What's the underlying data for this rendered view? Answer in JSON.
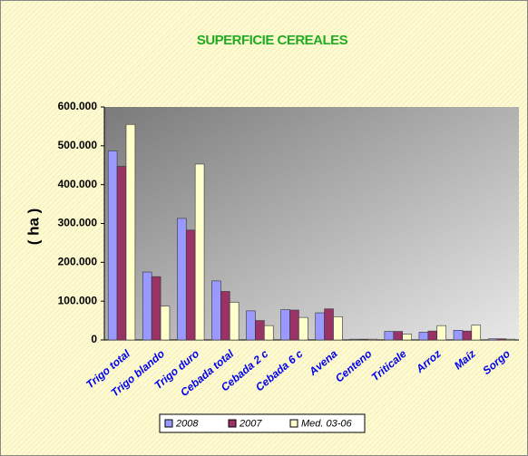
{
  "chart_data": {
    "type": "bar",
    "title": "SUPERFICIE CEREALES",
    "y_label": "( ha )",
    "categories": [
      "Trigo total",
      "Trigo blando",
      "Trigo duro",
      "Cebada total",
      "Cebada 2 c",
      "Cebada 6 c",
      "Avena",
      "Centeno",
      "Triticale",
      "Arroz",
      "Maíz",
      "Sorgo"
    ],
    "series": [
      {
        "name": "2008",
        "color": "#9999ff",
        "values": [
          487000,
          175000,
          313000,
          152000,
          75000,
          78000,
          70000,
          2000,
          22000,
          20000,
          25000,
          3000
        ]
      },
      {
        "name": "2007",
        "color": "#993366",
        "values": [
          447000,
          163000,
          283000,
          125000,
          50000,
          77000,
          80000,
          2000,
          22000,
          23000,
          23000,
          3000
        ]
      },
      {
        "name": "Med. 03-06",
        "color": "#ffffcc",
        "values": [
          555000,
          87000,
          453000,
          97000,
          37000,
          58000,
          60000,
          2000,
          15000,
          37000,
          38000,
          2000
        ]
      }
    ],
    "ylim": [
      0,
      600000
    ],
    "yticks": [
      0,
      {
        "value": 100000,
        "label": "100.000"
      },
      {
        "value": 200000,
        "label": "200.000"
      },
      {
        "value": 300000,
        "label": "300.000"
      },
      {
        "value": 400000,
        "label": "400.000"
      },
      {
        "value": 500000,
        "label": "500.000"
      },
      {
        "value": 600000,
        "label": "600.000"
      }
    ],
    "grid": false,
    "legend": "bottom"
  }
}
